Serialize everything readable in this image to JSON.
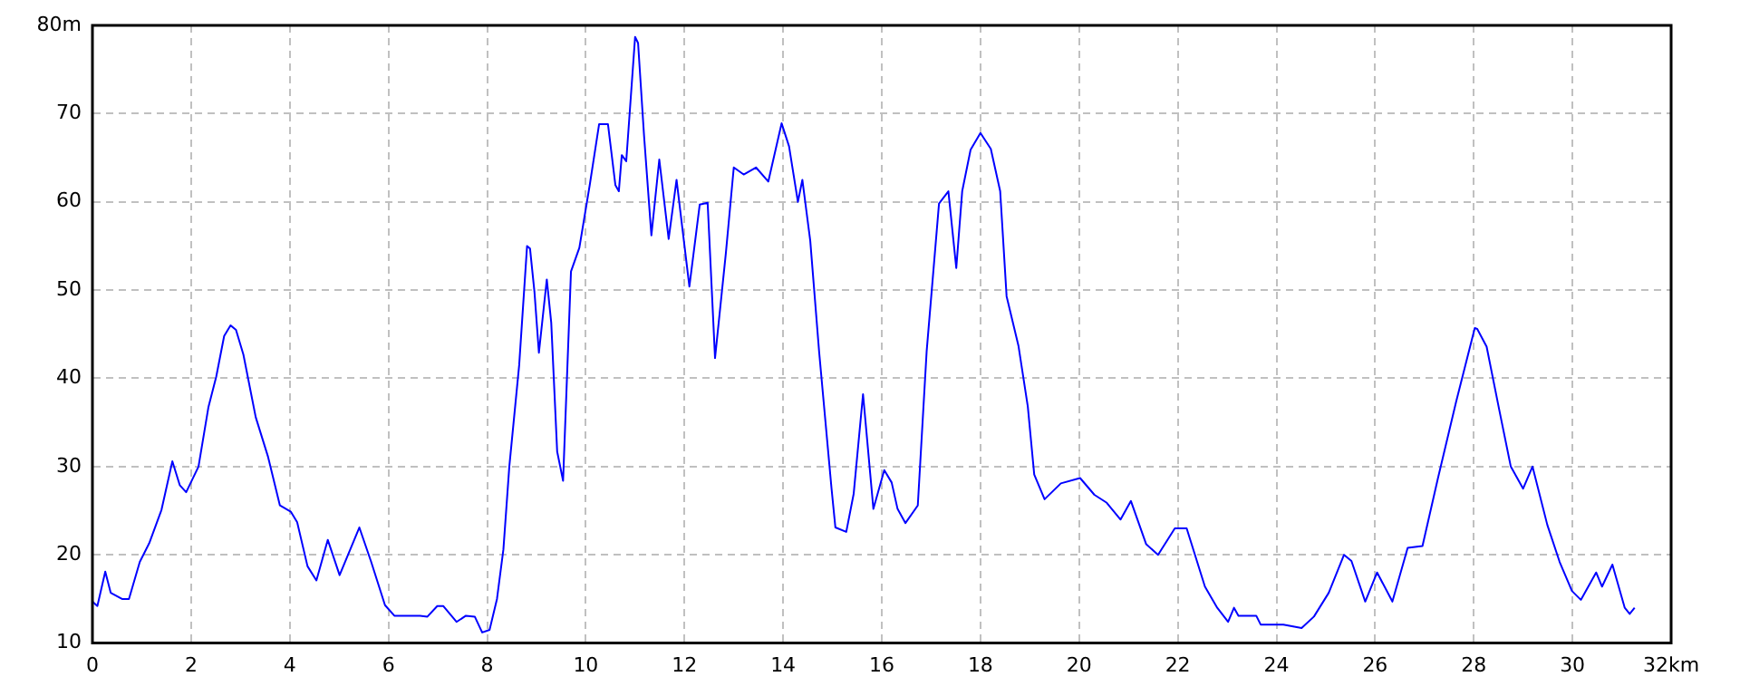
{
  "chart_data": {
    "type": "line",
    "x": [
      0,
      0.1,
      0.26,
      0.37,
      0.6,
      0.74,
      0.96,
      1.15,
      1.4,
      1.62,
      1.77,
      1.9,
      2.15,
      2.35,
      2.51,
      2.67,
      2.8,
      2.91,
      3.06,
      3.31,
      3.56,
      3.8,
      4.02,
      4.15,
      4.36,
      4.54,
      4.77,
      5.01,
      5.41,
      5.65,
      5.93,
      6.12,
      6.64,
      6.79,
      6.99,
      7.11,
      7.38,
      7.57,
      7.75,
      7.9,
      8.05,
      8.2,
      8.33,
      8.45,
      8.65,
      8.81,
      8.87,
      8.96,
      9.05,
      9.21,
      9.3,
      9.42,
      9.54,
      9.7,
      9.87,
      10.08,
      10.27,
      10.45,
      10.6,
      10.67,
      10.73,
      10.82,
      11,
      11.06,
      11.18,
      11.33,
      11.49,
      11.68,
      11.84,
      12.1,
      12.31,
      12.47,
      12.62,
      12.84,
      13,
      13.2,
      13.45,
      13.7,
      13.97,
      14.12,
      14.3,
      14.39,
      14.55,
      14.73,
      14.98,
      15.06,
      15.28,
      15.43,
      15.62,
      15.83,
      16.05,
      16.2,
      16.32,
      16.48,
      16.73,
      16.91,
      17.16,
      17.35,
      17.51,
      17.63,
      17.8,
      18,
      18.21,
      18.4,
      18.53,
      18.77,
      18.96,
      19.09,
      19.3,
      19.63,
      20.02,
      20.31,
      20.56,
      20.84,
      21.05,
      21.36,
      21.6,
      21.94,
      22.18,
      22.55,
      22.8,
      23.02,
      23.14,
      23.23,
      23.59,
      23.68,
      24.14,
      24.51,
      24.76,
      25.06,
      25.37,
      25.52,
      25.8,
      26.04,
      26.35,
      26.66,
      26.96,
      27.27,
      27.64,
      28.02,
      28.07,
      28.26,
      28.51,
      28.75,
      29,
      29.19,
      29.49,
      29.74,
      29.99,
      30.17,
      30.48,
      30.6,
      30.81,
      31.06,
      31.16,
      31.26
    ],
    "values": [
      14.7,
      14.2,
      18.1,
      15.7,
      15,
      15,
      19.2,
      21.3,
      25.1,
      30.6,
      27.9,
      27.1,
      30,
      36.7,
      40.2,
      44.8,
      46,
      45.5,
      42.7,
      35.6,
      31.1,
      25.6,
      24.9,
      23.7,
      18.7,
      17.1,
      21.7,
      17.7,
      23.1,
      19.2,
      14.3,
      13.1,
      13.1,
      13,
      14.2,
      14.2,
      12.4,
      13.1,
      13,
      11.2,
      11.5,
      15,
      20.6,
      30,
      41.5,
      55,
      54.7,
      49.8,
      42.9,
      51.2,
      46.3,
      31.7,
      28.4,
      52.1,
      54.8,
      61.9,
      68.8,
      68.8,
      61.9,
      61.2,
      65.3,
      64.6,
      78.7,
      78,
      67.6,
      56.2,
      64.8,
      55.8,
      62.5,
      50.4,
      59.7,
      59.9,
      42.3,
      54.2,
      63.9,
      63.1,
      63.9,
      62.3,
      68.9,
      66.3,
      60,
      62.5,
      55.6,
      43,
      27.6,
      23.1,
      22.6,
      26.9,
      38.2,
      25.2,
      29.6,
      28.2,
      25.2,
      23.6,
      25.6,
      43.1,
      59.8,
      61.2,
      52.5,
      61.2,
      65.9,
      67.8,
      66,
      61.2,
      49.3,
      43.7,
      36.8,
      29.1,
      26.3,
      28.1,
      28.7,
      26.8,
      25.9,
      24,
      26.1,
      21.2,
      20,
      23,
      23,
      16.4,
      14,
      12.4,
      14,
      13.1,
      13.1,
      12.1,
      12.1,
      11.7,
      13,
      15.7,
      20,
      19.3,
      14.7,
      18,
      14.7,
      20.8,
      21,
      28.6,
      37.3,
      45.7,
      45.6,
      43.6,
      36.6,
      30,
      27.5,
      30,
      23.4,
      19.2,
      15.9,
      14.9,
      18,
      16.4,
      18.9,
      14,
      13.3,
      14
    ],
    "color": "#0000ff",
    "marker": "none",
    "xlim": [
      0,
      32
    ],
    "xticks": [
      0,
      2,
      4,
      6,
      8,
      10,
      12,
      14,
      16,
      18,
      20,
      22,
      24,
      26,
      28,
      30,
      {
        "value": 32,
        "label": "32km"
      }
    ],
    "ylim": [
      10,
      80
    ],
    "yticks": [
      10,
      20,
      30,
      40,
      50,
      60,
      70,
      {
        "value": 80,
        "label": "80m"
      }
    ],
    "grid": true
  }
}
